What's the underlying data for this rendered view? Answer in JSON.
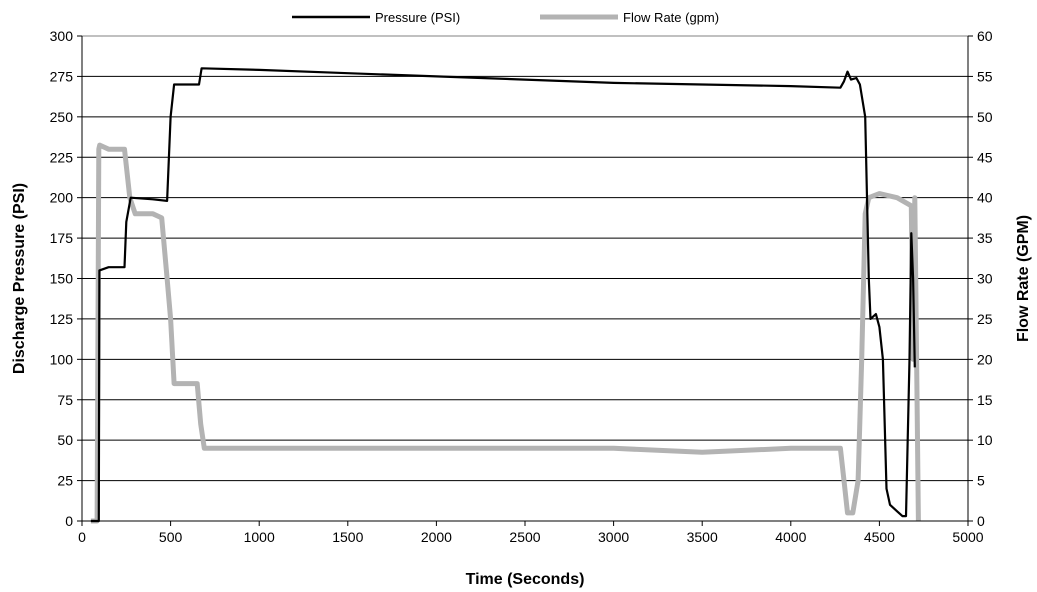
{
  "chart_data": {
    "type": "line",
    "title": "",
    "xlabel": "Time (Seconds)",
    "ylabel": "Discharge Pressure (PSI)",
    "y2label": "Flow Rate (GPM)",
    "xlim": [
      0,
      5000
    ],
    "ylim": [
      0,
      300
    ],
    "y2lim": [
      0,
      60
    ],
    "xticks": [
      "0",
      "500",
      "1000",
      "1500",
      "2000",
      "2500",
      "3000",
      "3500",
      "4000",
      "4500",
      "5000"
    ],
    "yticks": [
      "0",
      "25",
      "50",
      "75",
      "100",
      "125",
      "150",
      "175",
      "200",
      "225",
      "250",
      "275",
      "300"
    ],
    "y2ticks": [
      "0",
      "5",
      "10",
      "15",
      "20",
      "25",
      "30",
      "35",
      "40",
      "45",
      "50",
      "55",
      "60"
    ],
    "grid": "horizontal",
    "legend": "top-center",
    "series": [
      {
        "name": "Pressure (PSI)",
        "axis": "left",
        "color": "#000000",
        "points": [
          [
            50,
            0
          ],
          [
            95,
            0
          ],
          [
            98,
            155
          ],
          [
            150,
            157
          ],
          [
            240,
            157
          ],
          [
            250,
            185
          ],
          [
            275,
            200
          ],
          [
            400,
            199
          ],
          [
            480,
            198
          ],
          [
            500,
            250
          ],
          [
            520,
            270
          ],
          [
            660,
            270
          ],
          [
            675,
            280
          ],
          [
            1000,
            279
          ],
          [
            1500,
            277
          ],
          [
            2000,
            275
          ],
          [
            2500,
            273
          ],
          [
            3000,
            271
          ],
          [
            3500,
            270
          ],
          [
            4000,
            269
          ],
          [
            4280,
            268
          ],
          [
            4300,
            272
          ],
          [
            4320,
            278
          ],
          [
            4340,
            273
          ],
          [
            4370,
            274
          ],
          [
            4390,
            270
          ],
          [
            4420,
            250
          ],
          [
            4430,
            200
          ],
          [
            4440,
            150
          ],
          [
            4450,
            125
          ],
          [
            4480,
            128
          ],
          [
            4500,
            120
          ],
          [
            4520,
            100
          ],
          [
            4540,
            20
          ],
          [
            4560,
            10
          ],
          [
            4600,
            6
          ],
          [
            4630,
            3
          ],
          [
            4650,
            3
          ],
          [
            4670,
            100
          ],
          [
            4680,
            178
          ],
          [
            4690,
            150
          ],
          [
            4700,
            95
          ]
        ]
      },
      {
        "name": "Flow Rate (gpm)",
        "axis": "right",
        "color": "#b3b3b3",
        "points": [
          [
            50,
            0
          ],
          [
            85,
            0
          ],
          [
            95,
            46
          ],
          [
            100,
            46.5
          ],
          [
            150,
            46
          ],
          [
            240,
            46
          ],
          [
            270,
            40
          ],
          [
            300,
            38
          ],
          [
            400,
            38
          ],
          [
            450,
            37.5
          ],
          [
            480,
            30
          ],
          [
            500,
            25
          ],
          [
            520,
            17
          ],
          [
            650,
            17
          ],
          [
            670,
            12
          ],
          [
            690,
            9
          ],
          [
            1000,
            9
          ],
          [
            1500,
            9
          ],
          [
            2000,
            9
          ],
          [
            2500,
            9
          ],
          [
            3000,
            9
          ],
          [
            3500,
            8.5
          ],
          [
            4000,
            9
          ],
          [
            4280,
            9
          ],
          [
            4300,
            5
          ],
          [
            4320,
            1
          ],
          [
            4350,
            1
          ],
          [
            4380,
            5
          ],
          [
            4400,
            20
          ],
          [
            4420,
            38
          ],
          [
            4440,
            40
          ],
          [
            4500,
            40.5
          ],
          [
            4600,
            40
          ],
          [
            4680,
            39
          ],
          [
            4690,
            20
          ],
          [
            4700,
            40
          ],
          [
            4710,
            20
          ],
          [
            4720,
            0
          ]
        ]
      }
    ]
  }
}
